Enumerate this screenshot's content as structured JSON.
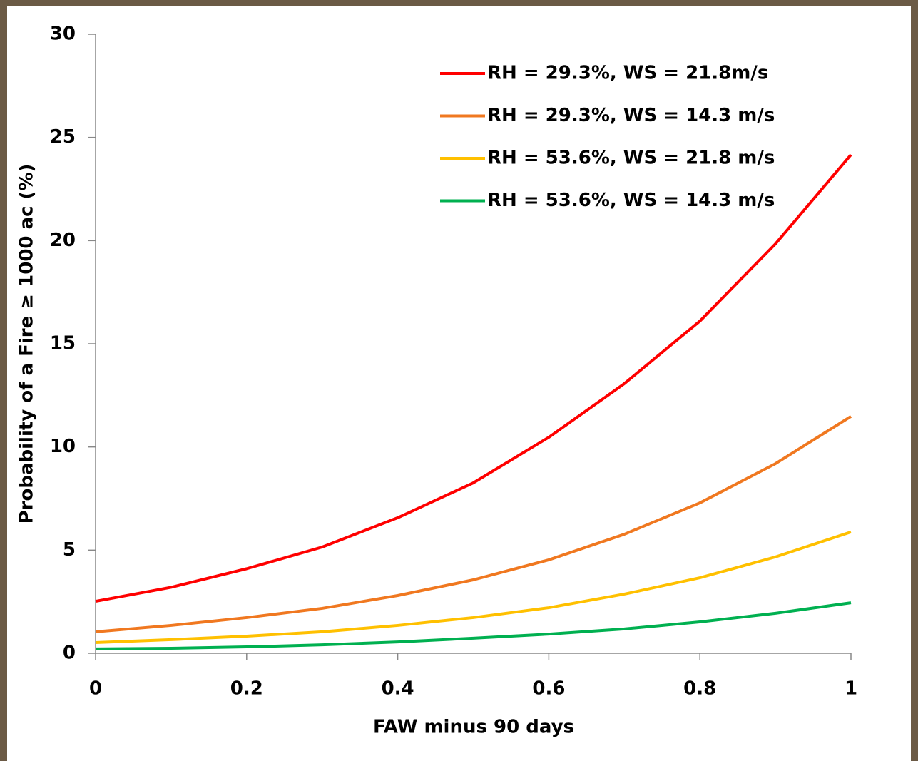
{
  "chart_data": {
    "type": "line",
    "x_label": "FAW minus 90 days",
    "y_label": "Probability of a Fire ≥ 1000 ac (%)",
    "x": [
      0,
      0.1,
      0.2,
      0.3,
      0.4,
      0.5,
      0.6,
      0.7,
      0.8,
      0.9,
      1
    ],
    "series": [
      {
        "name": "RH = 29.3%, WS = 21.8m/s",
        "color": "#ff0000",
        "values": [
          2.52,
          3.2,
          4.1,
          5.15,
          6.57,
          8.26,
          10.47,
          13.07,
          16.1,
          19.84,
          24.16
        ]
      },
      {
        "name": "RH = 29.3%, WS = 14.3 m/s",
        "color": "#f07820",
        "values": [
          1.04,
          1.35,
          1.73,
          2.18,
          2.8,
          3.56,
          4.53,
          5.77,
          7.29,
          9.19,
          11.48
        ]
      },
      {
        "name": "RH = 53.6%, WS = 21.8 m/s",
        "color": "#ffc000",
        "values": [
          0.52,
          0.66,
          0.83,
          1.04,
          1.35,
          1.73,
          2.21,
          2.87,
          3.66,
          4.67,
          5.88
        ]
      },
      {
        "name": "RH = 53.6%, WS = 14.3 m/s",
        "color": "#00b050",
        "values": [
          0.21,
          0.24,
          0.31,
          0.41,
          0.55,
          0.73,
          0.93,
          1.18,
          1.52,
          1.94,
          2.45
        ]
      }
    ],
    "xlim": [
      0,
      1
    ],
    "xticks": [
      0,
      0.2,
      0.4,
      0.6,
      0.8,
      1
    ],
    "ylim": [
      0,
      30
    ],
    "yticks": [
      0,
      5,
      10,
      15,
      20,
      25,
      30
    ],
    "grid": false,
    "legend": "top-right"
  }
}
